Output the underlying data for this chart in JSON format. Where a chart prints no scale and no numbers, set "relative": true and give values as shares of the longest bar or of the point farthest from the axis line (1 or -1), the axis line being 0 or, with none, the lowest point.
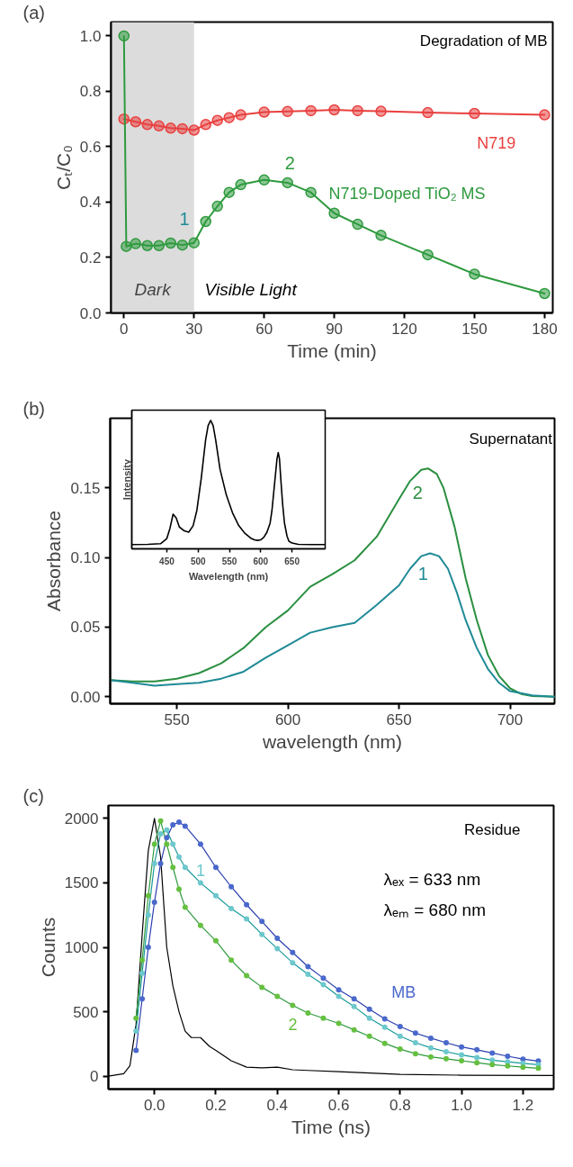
{
  "chart_data": [
    {
      "type": "line",
      "xlabel": "Time (min)",
      "ylabel": "Cₜ/C₀",
      "marker": "circle",
      "grid": false,
      "xlim": [
        -5.5,
        183.5
      ],
      "ylim": [
        0,
        1.05
      ],
      "xticks": [
        0,
        30,
        60,
        90,
        120,
        150,
        180
      ],
      "yticks": [
        {
          "value": 0,
          "label": "0.0"
        },
        0.2,
        0.4,
        0.6,
        0.8,
        {
          "value": 1,
          "label": "1.0"
        }
      ],
      "bands": [
        {
          "axis": "x",
          "from": -5.5,
          "to": 30,
          "label": "Dark",
          "color": "#dcdcdc"
        }
      ],
      "annotations": [
        "(a)",
        "Degradation of MB",
        "Visible Light",
        "1",
        "2"
      ],
      "series": [
        {
          "name": "N719",
          "color": "#e8403f",
          "x": [
            0,
            5,
            10,
            15,
            20,
            25,
            30,
            35,
            40,
            45,
            50,
            60,
            70,
            80,
            90,
            100,
            110,
            130,
            150,
            180
          ],
          "values": [
            0.7,
            0.69,
            0.68,
            0.675,
            0.667,
            0.665,
            0.66,
            0.68,
            0.695,
            0.705,
            0.715,
            0.725,
            0.727,
            0.73,
            0.733,
            0.73,
            0.728,
            0.723,
            0.72,
            0.715
          ]
        },
        {
          "name": "N719-Doped TiO₂ MS",
          "color": "#2e9a3e",
          "x": [
            0,
            1,
            5,
            10,
            15,
            20,
            25,
            30,
            35,
            40,
            45,
            50,
            60,
            70,
            80,
            90,
            100,
            110,
            130,
            150,
            180
          ],
          "values": [
            1.0,
            0.24,
            0.25,
            0.243,
            0.243,
            0.252,
            0.245,
            0.253,
            0.33,
            0.385,
            0.435,
            0.463,
            0.48,
            0.47,
            0.435,
            0.36,
            0.32,
            0.28,
            0.21,
            0.14,
            0.07
          ]
        }
      ]
    },
    {
      "type": "line",
      "xlabel": "wavelength (nm)",
      "ylabel": "Absorbance",
      "grid": false,
      "xlim": [
        520,
        720
      ],
      "ylim": [
        -0.005,
        0.2
      ],
      "xticks": [
        550,
        600,
        650,
        700
      ],
      "yticks": [
        {
          "value": 0,
          "label": "0.00"
        },
        0.05,
        {
          "value": 0.1,
          "label": "0.10"
        },
        0.15
      ],
      "annotations": [
        "(b)",
        "Supernatant"
      ],
      "series": [
        {
          "name": "2",
          "color": "#2a8f40",
          "x": [
            520,
            530,
            540,
            550,
            560,
            570,
            580,
            590,
            600,
            610,
            620,
            630,
            640,
            650,
            655,
            660,
            663,
            667,
            670,
            675,
            680,
            685,
            690,
            695,
            700,
            705,
            710,
            720
          ],
          "values": [
            0.012,
            0.011,
            0.011,
            0.013,
            0.017,
            0.024,
            0.035,
            0.05,
            0.062,
            0.079,
            0.088,
            0.098,
            0.115,
            0.142,
            0.155,
            0.163,
            0.164,
            0.16,
            0.15,
            0.122,
            0.085,
            0.055,
            0.03,
            0.015,
            0.006,
            0.002,
            0.0005,
            0.0
          ]
        },
        {
          "name": "1",
          "color": "#1f8a96",
          "x": [
            520,
            530,
            540,
            550,
            560,
            570,
            580,
            590,
            600,
            610,
            620,
            630,
            640,
            650,
            655,
            660,
            664,
            668,
            672,
            676,
            680,
            685,
            690,
            695,
            700,
            710,
            720
          ],
          "values": [
            0.012,
            0.01,
            0.008,
            0.009,
            0.01,
            0.013,
            0.018,
            0.028,
            0.037,
            0.046,
            0.05,
            0.053,
            0.066,
            0.08,
            0.092,
            0.101,
            0.103,
            0.101,
            0.092,
            0.075,
            0.055,
            0.035,
            0.02,
            0.01,
            0.004,
            0.001,
            0.0
          ]
        }
      ]
    },
    {
      "type": "line",
      "relative": true,
      "xlabel": "Wavelength (nm)",
      "ylabel": "Intensity",
      "tick_labels": "x",
      "grid": false,
      "xlim": [
        394,
        703
      ],
      "xticks": [
        450,
        500,
        550,
        600,
        650
      ],
      "series": [
        {
          "color": "#000000",
          "x": [
            395,
            420,
            440,
            450,
            455,
            460,
            465,
            470,
            478,
            485,
            492,
            498,
            505,
            512,
            516,
            520,
            524,
            528,
            535,
            545,
            555,
            565,
            575,
            585,
            590,
            595,
            600,
            605,
            610,
            615,
            618,
            621,
            624,
            626,
            628,
            630,
            632,
            635,
            638,
            642,
            645,
            650,
            660,
            680,
            703
          ],
          "values": [
            0.033,
            0.035,
            0.04,
            0.08,
            0.16,
            0.27,
            0.24,
            0.17,
            0.14,
            0.13,
            0.18,
            0.3,
            0.55,
            0.85,
            0.96,
            1.0,
            0.96,
            0.85,
            0.62,
            0.42,
            0.28,
            0.18,
            0.12,
            0.08,
            0.07,
            0.066,
            0.07,
            0.09,
            0.13,
            0.2,
            0.3,
            0.45,
            0.6,
            0.7,
            0.75,
            0.7,
            0.55,
            0.35,
            0.2,
            0.1,
            0.06,
            0.045,
            0.035,
            0.033,
            0.033
          ]
        }
      ]
    },
    {
      "type": "scatter",
      "xlabel": "Time (ns)",
      "ylabel": "Counts",
      "grid": false,
      "marker": "circle",
      "xlim": [
        -0.15,
        1.3
      ],
      "ylim": [
        -100,
        2100
      ],
      "xticks": [
        {
          "value": 0,
          "label": "0.0"
        },
        0.2,
        0.4,
        0.6,
        0.8,
        {
          "value": 1,
          "label": "1.0"
        },
        1.2
      ],
      "yticks": [
        0,
        500,
        1000,
        1500,
        2000
      ],
      "annotations": [
        "(c)",
        "Residue",
        "λₑₓ = 633 nm",
        "λₑₘ = 680 nm"
      ],
      "x": [
        -0.06,
        -0.04,
        -0.02,
        0,
        0.02,
        0.04,
        0.06,
        0.08,
        0.1,
        0.15,
        0.2,
        0.25,
        0.3,
        0.35,
        0.4,
        0.45,
        0.5,
        0.55,
        0.6,
        0.65,
        0.7,
        0.75,
        0.8,
        0.85,
        0.9,
        0.95,
        1.0,
        1.05,
        1.1,
        1.15,
        1.2,
        1.25
      ],
      "series": [
        {
          "type": "line",
          "marker": "none",
          "color": "#000000",
          "x": [
            -0.15,
            -0.1,
            -0.08,
            -0.06,
            -0.04,
            -0.02,
            0,
            0.02,
            0.04,
            0.06,
            0.08,
            0.1,
            0.12,
            0.15,
            0.18,
            0.2,
            0.25,
            0.3,
            0.35,
            0.4,
            0.45,
            0.5,
            0.6,
            0.8,
            1.0,
            1.3
          ],
          "values": [
            0,
            20,
            80,
            400,
            1100,
            1750,
            2000,
            1700,
            1000,
            700,
            500,
            350,
            300,
            300,
            230,
            200,
            120,
            70,
            65,
            70,
            50,
            45,
            35,
            15,
            8,
            5
          ]
        },
        {
          "name": "MB",
          "color": "#4a68cc",
          "values": [
            200,
            600,
            1000,
            1350,
            1650,
            1850,
            1950,
            1970,
            1940,
            1800,
            1620,
            1470,
            1330,
            1200,
            1070,
            960,
            850,
            760,
            670,
            600,
            520,
            445,
            385,
            335,
            295,
            260,
            227,
            205,
            180,
            155,
            133,
            118
          ]
        },
        {
          "type": "line",
          "marker": "none",
          "color": "#2b3fb0",
          "values": [
            200,
            600,
            1000,
            1350,
            1650,
            1850,
            1950,
            1970,
            1940,
            1800,
            1620,
            1470,
            1330,
            1200,
            1070,
            960,
            850,
            760,
            670,
            600,
            520,
            445,
            385,
            335,
            295,
            260,
            227,
            205,
            180,
            155,
            133,
            118
          ]
        },
        {
          "name": "1",
          "color": "#6cc8cc",
          "values": [
            350,
            800,
            1250,
            1650,
            1880,
            1910,
            1800,
            1700,
            1620,
            1500,
            1400,
            1300,
            1220,
            1100,
            990,
            880,
            790,
            710,
            620,
            540,
            450,
            380,
            310,
            260,
            220,
            190,
            165,
            145,
            125,
            112,
            100,
            90
          ]
        },
        {
          "type": "line",
          "marker": "none",
          "color": "#1a9a9a",
          "values": [
            350,
            800,
            1250,
            1650,
            1880,
            1910,
            1800,
            1700,
            1620,
            1500,
            1400,
            1300,
            1220,
            1100,
            990,
            880,
            790,
            710,
            620,
            540,
            450,
            380,
            310,
            260,
            220,
            190,
            165,
            145,
            125,
            112,
            100,
            90
          ]
        },
        {
          "name": "2",
          "color": "#66c040",
          "values": [
            450,
            900,
            1400,
            1800,
            1980,
            1800,
            1620,
            1450,
            1310,
            1170,
            1050,
            900,
            780,
            690,
            620,
            550,
            490,
            450,
            410,
            360,
            310,
            255,
            210,
            175,
            150,
            135,
            120,
            105,
            90,
            80,
            70,
            62
          ]
        },
        {
          "type": "line",
          "marker": "none",
          "color": "#2e9a3e",
          "values": [
            450,
            900,
            1400,
            1800,
            1980,
            1800,
            1620,
            1450,
            1310,
            1170,
            1050,
            900,
            780,
            690,
            620,
            550,
            490,
            450,
            410,
            360,
            310,
            255,
            210,
            175,
            150,
            135,
            120,
            105,
            90,
            80,
            70,
            62
          ]
        }
      ]
    }
  ]
}
